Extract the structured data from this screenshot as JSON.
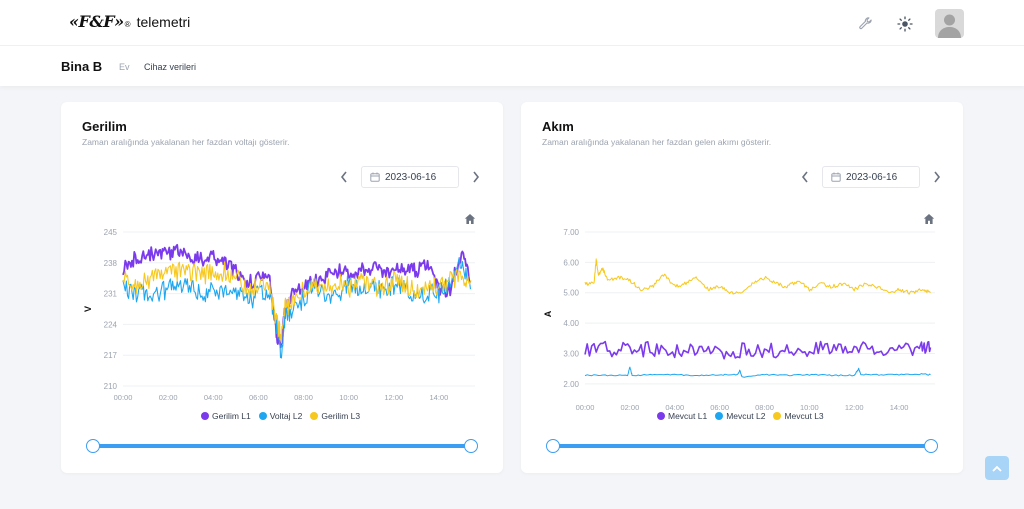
{
  "brand": {
    "logo": "«F&F»",
    "registered": "®",
    "name": "telemetri"
  },
  "header": {
    "wrench_icon": "wrench-icon",
    "theme_icon": "sun-icon",
    "avatar_icon": "user-avatar"
  },
  "breadcrumb": {
    "title": "Bina B",
    "items": [
      "Ev",
      "Cihaz verileri"
    ]
  },
  "cards": [
    {
      "title": "Gerilim",
      "subtitle": "Zaman aralığında yakalanan her fazdan voltajı gösterir.",
      "date": "2023-06-16"
    },
    {
      "title": "Akım",
      "subtitle": "Zaman aralığında yakalanan her fazdan gelen akımı gösterir.",
      "date": "2023-06-16"
    }
  ],
  "chart_data": [
    {
      "type": "line",
      "title": "",
      "xlabel": "",
      "ylabel": "V",
      "x_ticks": [
        "00:00",
        "02:00",
        "04:00",
        "06:00",
        "08:00",
        "10:00",
        "12:00",
        "14:00"
      ],
      "xlim": [
        0,
        15.6
      ],
      "y_ticks": [
        "210",
        "217",
        "224",
        "231",
        "238",
        "245"
      ],
      "ylim": [
        210,
        245
      ],
      "legend": "bottom",
      "grid": true,
      "series": [
        {
          "name": "Gerilim L1",
          "color": "#7c3aed",
          "x": [
            0,
            0.5,
            1,
            1.5,
            2,
            2.5,
            3,
            3.5,
            4,
            4.5,
            5,
            5.5,
            6,
            6.5,
            6.8,
            7,
            7.2,
            7.5,
            8,
            8.5,
            9,
            9.5,
            10,
            10.5,
            11,
            11.5,
            12,
            12.5,
            13,
            13.5,
            14,
            14.5,
            15,
            15.4
          ],
          "values": [
            237,
            239,
            240,
            240,
            240,
            241,
            239,
            239,
            239,
            238,
            236,
            233,
            235,
            234,
            222,
            219,
            228,
            231,
            232,
            234,
            235,
            236,
            236,
            236,
            237,
            236,
            236,
            237,
            236,
            238,
            232,
            232,
            240,
            234
          ]
        },
        {
          "name": "Voltaj L2",
          "color": "#1ea7f0",
          "x": [
            0,
            0.5,
            1,
            1.5,
            2,
            2.5,
            3,
            3.5,
            4,
            4.5,
            5,
            5.5,
            6,
            6.5,
            6.8,
            7,
            7.2,
            7.5,
            8,
            8.5,
            9,
            9.5,
            10,
            10.5,
            11,
            11.5,
            12,
            12.5,
            13,
            13.5,
            14,
            14.5,
            15,
            15.4
          ],
          "values": [
            232,
            231,
            231,
            231,
            232,
            233,
            232,
            231,
            232,
            231,
            231,
            229,
            231,
            230,
            224,
            217,
            226,
            227,
            230,
            233,
            231,
            231,
            233,
            232,
            233,
            232,
            233,
            232,
            230,
            231,
            231,
            233,
            239,
            232
          ]
        },
        {
          "name": "Gerilim L3",
          "color": "#f7c81e",
          "x": [
            0,
            0.5,
            1,
            1.5,
            2,
            2.5,
            3,
            3.5,
            4,
            4.5,
            5,
            5.5,
            6,
            6.5,
            6.8,
            7,
            7.2,
            7.5,
            8,
            8.5,
            9,
            9.5,
            10,
            10.5,
            11,
            11.5,
            12,
            12.5,
            13,
            13.5,
            14,
            14.5,
            15,
            15.4
          ],
          "values": [
            234,
            233,
            234,
            235,
            236,
            236,
            236,
            235,
            236,
            236,
            235,
            232,
            233,
            232,
            225,
            221,
            228,
            229,
            232,
            233,
            232,
            234,
            232,
            234,
            233,
            232,
            234,
            233,
            232,
            233,
            233,
            234,
            235,
            234
          ]
        }
      ]
    },
    {
      "type": "line",
      "title": "",
      "xlabel": "",
      "ylabel": "A",
      "x_ticks": [
        "00:00",
        "02:00",
        "04:00",
        "06:00",
        "08:00",
        "10:00",
        "12:00",
        "14:00"
      ],
      "xlim": [
        0,
        15.6
      ],
      "y_ticks": [
        "2.00",
        "3.00",
        "4.00",
        "5.00",
        "6.00",
        "7.00"
      ],
      "ylim": [
        1.6,
        7.0
      ],
      "legend": "bottom",
      "grid": true,
      "series": [
        {
          "name": "Mevcut L1",
          "color": "#7c3aed",
          "x": [
            0,
            1,
            2,
            3,
            4,
            5,
            6,
            7,
            8,
            9,
            10,
            11,
            12,
            13,
            14,
            15,
            15.4
          ],
          "values": [
            3.1,
            3.15,
            3.1,
            3.15,
            3.1,
            3.1,
            3.05,
            3.1,
            3.1,
            3.1,
            3.15,
            3.15,
            3.15,
            3.1,
            3.15,
            3.2,
            3.2
          ]
        },
        {
          "name": "Mevcut L2",
          "color": "#1ea7f0",
          "x": [
            0,
            1,
            1.9,
            2,
            2.1,
            3,
            4,
            5,
            6,
            6.8,
            6.9,
            7,
            8,
            9,
            10,
            11,
            12,
            12.2,
            12.3,
            13,
            14,
            15,
            15.4
          ],
          "values": [
            2.28,
            2.28,
            2.28,
            2.55,
            2.28,
            2.3,
            2.3,
            2.28,
            2.3,
            2.3,
            2.45,
            2.22,
            2.3,
            2.28,
            2.3,
            2.28,
            2.28,
            2.5,
            2.3,
            2.3,
            2.3,
            2.32,
            2.3
          ]
        },
        {
          "name": "Mevcut L3",
          "color": "#f7c81e",
          "x": [
            0,
            0.4,
            0.5,
            0.6,
            0.8,
            1,
            1.5,
            2,
            2.5,
            3,
            3.5,
            4,
            4.5,
            5,
            5.5,
            6,
            6.5,
            7,
            7.5,
            8,
            8.5,
            9,
            9.5,
            10,
            10.5,
            11,
            11.5,
            12,
            12.5,
            13,
            13.5,
            14,
            14.5,
            15,
            15.4
          ],
          "values": [
            5.3,
            5.3,
            6.1,
            5.6,
            5.8,
            5.4,
            5.5,
            5.4,
            5.1,
            5.2,
            5.6,
            5.2,
            5.3,
            5.5,
            5.1,
            5.2,
            5.0,
            5.0,
            5.3,
            5.5,
            5.3,
            5.2,
            5.4,
            5.1,
            5.3,
            5.2,
            5.3,
            5.1,
            5.3,
            5.2,
            5.0,
            5.1,
            5.0,
            5.1,
            5.0
          ]
        }
      ]
    }
  ],
  "scroll_top_icon": "arrow-up-icon"
}
